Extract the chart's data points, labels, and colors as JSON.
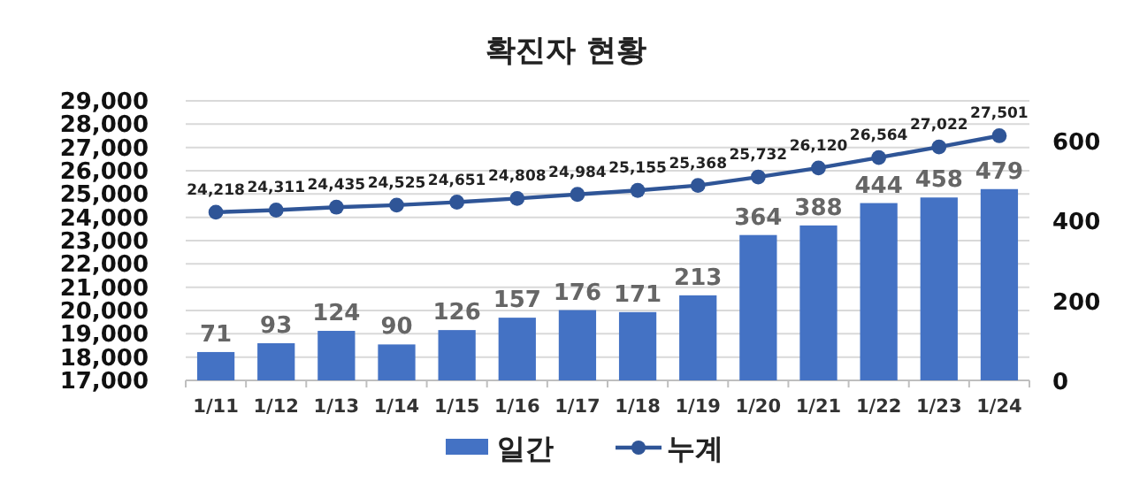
{
  "chart_data": {
    "type": "bar",
    "title": "확진자 현황",
    "categories": [
      "1/11",
      "1/12",
      "1/13",
      "1/14",
      "1/15",
      "1/16",
      "1/17",
      "1/18",
      "1/19",
      "1/20",
      "1/21",
      "1/22",
      "1/23",
      "1/24"
    ],
    "series": [
      {
        "name": "일간",
        "axis": "y2",
        "color": "#4472c4",
        "values": [
          71,
          93,
          124,
          90,
          126,
          157,
          176,
          171,
          213,
          364,
          388,
          444,
          458,
          479
        ],
        "value_labels": [
          "71",
          "93",
          "124",
          "90",
          "126",
          "157",
          "176",
          "171",
          "213",
          "364",
          "388",
          "444",
          "458",
          "479"
        ]
      },
      {
        "name": "누계",
        "type": "line",
        "color": "#2f5597",
        "marker": "circle",
        "values": [
          24218,
          24311,
          24435,
          24525,
          24651,
          24808,
          24984,
          25155,
          25368,
          25732,
          26120,
          26564,
          27022,
          27501
        ],
        "value_labels": [
          "24,218",
          "24,311",
          "24,435",
          "24,525",
          "24,651",
          "24,808",
          "24,984",
          "25,155",
          "25,368",
          "25,732",
          "26,120",
          "26,564",
          "27,022",
          "27,501"
        ]
      }
    ],
    "ylim": [
      17000,
      29000
    ],
    "yticks": [
      {
        "value": 17000,
        "label": "17,000"
      },
      {
        "value": 18000,
        "label": "18,000"
      },
      {
        "value": 19000,
        "label": "19,000"
      },
      {
        "value": 20000,
        "label": "20,000"
      },
      {
        "value": 21000,
        "label": "21,000"
      },
      {
        "value": 22000,
        "label": "22,000"
      },
      {
        "value": 23000,
        "label": "23,000"
      },
      {
        "value": 24000,
        "label": "24,000"
      },
      {
        "value": 25000,
        "label": "25,000"
      },
      {
        "value": 26000,
        "label": "26,000"
      },
      {
        "value": 27000,
        "label": "27,000"
      },
      {
        "value": 28000,
        "label": "28,000"
      },
      {
        "value": 29000,
        "label": "29,000"
      }
    ],
    "y2lim": [
      0,
      700
    ],
    "y2ticks": [
      0,
      200,
      400,
      600
    ],
    "grid": "y",
    "legend": "bottom"
  }
}
